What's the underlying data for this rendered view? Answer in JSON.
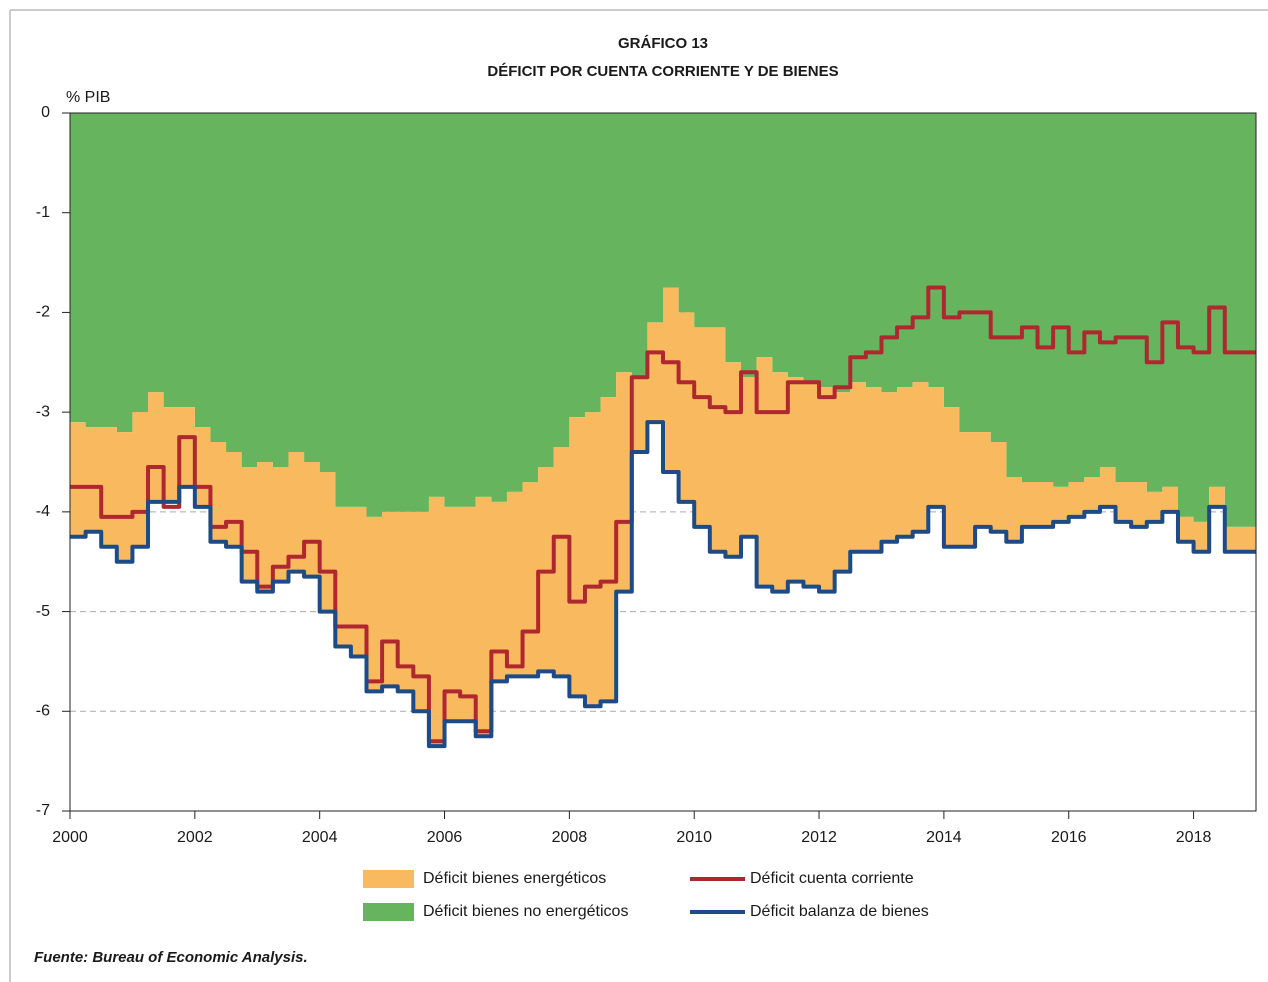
{
  "chart_data": {
    "type": "area",
    "title": "GRÁFICO 13",
    "subtitle": "DÉFICIT POR CUENTA CORRIENTE Y DE BIENES",
    "y_label": "% PIB",
    "source": "Fuente: Bureau of Economic Analysis.",
    "xlim": [
      2000,
      2019
    ],
    "xticks": [
      2000,
      2002,
      2004,
      2006,
      2008,
      2010,
      2012,
      2014,
      2016,
      2018
    ],
    "ylim": [
      -7,
      0
    ],
    "yticks": [
      0,
      -1,
      -2,
      -3,
      -4,
      -5,
      -6,
      -7
    ],
    "grid": true,
    "x": [
      2000,
      2000.25,
      2000.5,
      2000.75,
      2001,
      2001.25,
      2001.5,
      2001.75,
      2002,
      2002.25,
      2002.5,
      2002.75,
      2003,
      2003.25,
      2003.5,
      2003.75,
      2004,
      2004.25,
      2004.5,
      2004.75,
      2005,
      2005.25,
      2005.5,
      2005.75,
      2006,
      2006.25,
      2006.5,
      2006.75,
      2007,
      2007.25,
      2007.5,
      2007.75,
      2008,
      2008.25,
      2008.5,
      2008.75,
      2009,
      2009.25,
      2009.5,
      2009.75,
      2010,
      2010.25,
      2010.5,
      2010.75,
      2011,
      2011.25,
      2011.5,
      2011.75,
      2012,
      2012.25,
      2012.5,
      2012.75,
      2013,
      2013.25,
      2013.5,
      2013.75,
      2014,
      2014.25,
      2014.5,
      2014.75,
      2015,
      2015.25,
      2015.5,
      2015.75,
      2016,
      2016.25,
      2016.5,
      2016.75,
      2017,
      2017.25,
      2017.5,
      2017.75,
      2018,
      2018.25,
      2018.5,
      2018.75
    ],
    "series": [
      {
        "name": "Déficit bienes no energéticos",
        "type": "area",
        "color": "#66b55e",
        "values": [
          -3.1,
          -3.15,
          -3.15,
          -3.2,
          -3.0,
          -2.8,
          -2.95,
          -2.95,
          -3.15,
          -3.3,
          -3.4,
          -3.55,
          -3.5,
          -3.55,
          -3.4,
          -3.5,
          -3.6,
          -3.95,
          -3.95,
          -4.05,
          -4.0,
          -4.0,
          -4.0,
          -3.85,
          -3.95,
          -3.95,
          -3.85,
          -3.9,
          -3.8,
          -3.7,
          -3.55,
          -3.35,
          -3.05,
          -3.0,
          -2.85,
          -2.6,
          -2.65,
          -2.1,
          -1.75,
          -2.0,
          -2.15,
          -2.15,
          -2.5,
          -2.65,
          -2.45,
          -2.6,
          -2.65,
          -2.7,
          -2.75,
          -2.8,
          -2.7,
          -2.75,
          -2.8,
          -2.75,
          -2.7,
          -2.75,
          -2.95,
          -3.2,
          -3.2,
          -3.3,
          -3.65,
          -3.7,
          -3.7,
          -3.75,
          -3.7,
          -3.65,
          -3.55,
          -3.7,
          -3.7,
          -3.8,
          -3.75,
          -4.05,
          -4.1,
          -3.75,
          -4.15,
          -4.15
        ]
      },
      {
        "name": "Déficit bienes energéticos",
        "type": "area",
        "color": "#f9b95e",
        "values": [
          -1.15,
          -1.05,
          -1.2,
          -1.3,
          -1.35,
          -1.1,
          -0.95,
          -0.8,
          -0.8,
          -1.0,
          -0.95,
          -1.15,
          -1.3,
          -1.15,
          -1.2,
          -1.15,
          -1.4,
          -1.4,
          -1.5,
          -1.75,
          -1.75,
          -1.8,
          -2.0,
          -2.5,
          -2.15,
          -2.15,
          -2.4,
          -1.8,
          -1.85,
          -1.95,
          -2.05,
          -2.3,
          -2.8,
          -2.95,
          -3.05,
          -2.2,
          -0.75,
          -1.0,
          -1.85,
          -1.9,
          -2.0,
          -2.25,
          -1.95,
          -1.6,
          -2.3,
          -2.2,
          -2.05,
          -2.05,
          -2.05,
          -1.8,
          -1.7,
          -1.65,
          -1.5,
          -1.5,
          -1.5,
          -1.2,
          -1.4,
          -1.15,
          -0.95,
          -0.9,
          -0.65,
          -0.45,
          -0.45,
          -0.35,
          -0.35,
          -0.35,
          -0.4,
          -0.4,
          -0.45,
          -0.3,
          -0.25,
          -0.25,
          -0.3,
          -0.2,
          -0.25,
          -0.25
        ]
      },
      {
        "name": "Déficit cuenta corriente",
        "type": "line",
        "color": "#b0282f",
        "values": [
          -3.75,
          -3.75,
          -4.05,
          -4.05,
          -4.0,
          -3.55,
          -3.95,
          -3.25,
          -3.75,
          -4.15,
          -4.1,
          -4.4,
          -4.75,
          -4.55,
          -4.45,
          -4.3,
          -4.6,
          -5.15,
          -5.15,
          -5.7,
          -5.3,
          -5.55,
          -5.65,
          -6.3,
          -5.8,
          -5.85,
          -6.2,
          -5.4,
          -5.55,
          -5.2,
          -4.6,
          -4.25,
          -4.9,
          -4.75,
          -4.7,
          -4.1,
          -2.65,
          -2.4,
          -2.5,
          -2.7,
          -2.85,
          -2.95,
          -3.0,
          -2.6,
          -3.0,
          -3.0,
          -2.7,
          -2.7,
          -2.85,
          -2.75,
          -2.45,
          -2.4,
          -2.25,
          -2.15,
          -2.05,
          -1.75,
          -2.05,
          -2.0,
          -2.0,
          -2.25,
          -2.25,
          -2.15,
          -2.35,
          -2.15,
          -2.4,
          -2.2,
          -2.3,
          -2.25,
          -2.25,
          -2.5,
          -2.1,
          -2.35,
          -2.4,
          -1.95,
          -2.4,
          -2.4
        ]
      },
      {
        "name": "Déficit balanza de bienes",
        "type": "line",
        "color": "#1c4b87",
        "values": [
          -4.25,
          -4.2,
          -4.35,
          -4.5,
          -4.35,
          -3.9,
          -3.9,
          -3.75,
          -3.95,
          -4.3,
          -4.35,
          -4.7,
          -4.8,
          -4.7,
          -4.6,
          -4.65,
          -5.0,
          -5.35,
          -5.45,
          -5.8,
          -5.75,
          -5.8,
          -6.0,
          -6.35,
          -6.1,
          -6.1,
          -6.25,
          -5.7,
          -5.65,
          -5.65,
          -5.6,
          -5.65,
          -5.85,
          -5.95,
          -5.9,
          -4.8,
          -3.4,
          -3.1,
          -3.6,
          -3.9,
          -4.15,
          -4.4,
          -4.45,
          -4.25,
          -4.75,
          -4.8,
          -4.7,
          -4.75,
          -4.8,
          -4.6,
          -4.4,
          -4.4,
          -4.3,
          -4.25,
          -4.2,
          -3.95,
          -4.35,
          -4.35,
          -4.15,
          -4.2,
          -4.3,
          -4.15,
          -4.15,
          -4.1,
          -4.05,
          -4.0,
          -3.95,
          -4.1,
          -4.15,
          -4.1,
          -4.0,
          -4.3,
          -4.4,
          -3.95,
          -4.4,
          -4.4
        ]
      }
    ]
  }
}
